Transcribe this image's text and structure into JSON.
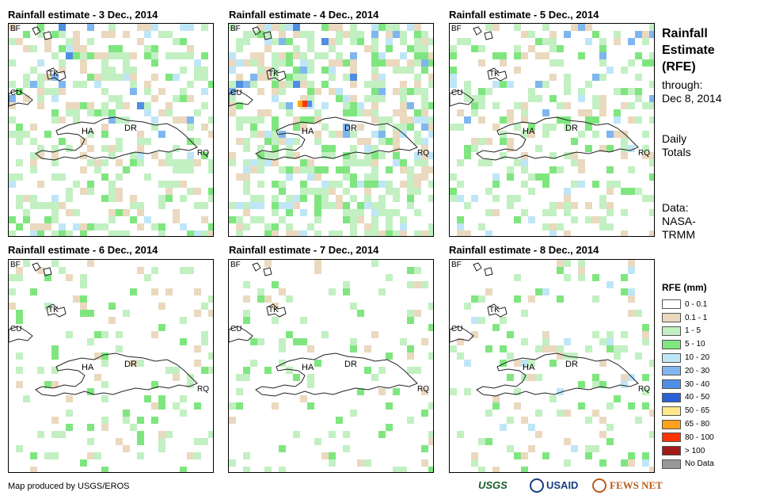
{
  "panels": [
    {
      "title": "Rainfall estimate - 3 Dec., 2014",
      "seed": 3,
      "wet": 0.45,
      "intense": 3
    },
    {
      "title": "Rainfall estimate - 4 Dec., 2014",
      "seed": 4,
      "wet": 0.65,
      "intense": 4
    },
    {
      "title": "Rainfall estimate - 5 Dec., 2014",
      "seed": 5,
      "wet": 0.4,
      "intense": 2
    },
    {
      "title": "Rainfall estimate - 6 Dec., 2014",
      "seed": 6,
      "wet": 0.18,
      "intense": 0
    },
    {
      "title": "Rainfall estimate - 7 Dec., 2014",
      "seed": 7,
      "wet": 0.15,
      "intense": 0
    },
    {
      "title": "Rainfall estimate - 8 Dec., 2014",
      "seed": 8,
      "wet": 0.22,
      "intense": 1
    }
  ],
  "map_labels": {
    "bf": "BF",
    "tk": "TK",
    "cu": "CU",
    "ha": "HA",
    "dr": "DR",
    "rq": "RQ"
  },
  "side": {
    "title_line1": "Rainfall",
    "title_line2": "Estimate",
    "title_line3": "(RFE)",
    "through": "through:",
    "date": "Dec 8, 2014",
    "daily_line1": "Daily",
    "daily_line2": "Totals",
    "data_line1": "Data:",
    "data_line2": "NASA-",
    "data_line3": "TRMM"
  },
  "legend": {
    "title": "RFE (mm)",
    "items": [
      {
        "label": "0 - 0.1",
        "color": "#ffffff"
      },
      {
        "label": "0.1 - 1",
        "color": "#ead9bf"
      },
      {
        "label": "1 - 5",
        "color": "#c2f0c2"
      },
      {
        "label": "5 - 10",
        "color": "#7fe67f"
      },
      {
        "label": "10 - 20",
        "color": "#bfe6f7"
      },
      {
        "label": "20 - 30",
        "color": "#7fb6ef"
      },
      {
        "label": "30 - 40",
        "color": "#4f8fe3"
      },
      {
        "label": "40 - 50",
        "color": "#2a5fd6"
      },
      {
        "label": "50 - 65",
        "color": "#ffe68a"
      },
      {
        "label": "65 - 80",
        "color": "#ffa31a"
      },
      {
        "label": "80 - 100",
        "color": "#ff3300"
      },
      {
        "label": "> 100",
        "color": "#a31a1a"
      },
      {
        "label": "No Data",
        "color": "#999999"
      }
    ]
  },
  "footer": "Map produced by USGS/EROS",
  "logos": {
    "usgs": "USGS",
    "usaid": "USAID",
    "fews": "FEWS NET"
  }
}
